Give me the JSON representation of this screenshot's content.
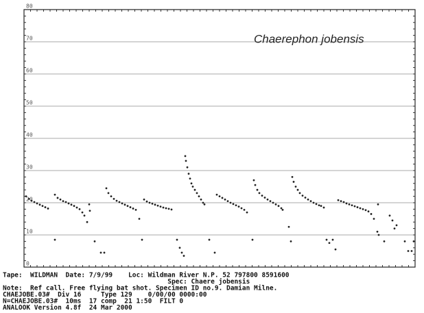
{
  "chart_data": {
    "type": "scatter",
    "annotation": "Chaerephon jobensis",
    "ylim": [
      0,
      80
    ],
    "yticks": [
      0,
      10,
      20,
      30,
      40,
      50,
      60,
      70,
      80
    ],
    "xlim": [
      0,
      570
    ],
    "grid": true,
    "color": "#222222",
    "x": [
      3,
      7,
      11,
      15,
      19,
      23,
      27,
      31,
      35,
      45,
      49,
      53,
      57,
      61,
      65,
      69,
      73,
      77,
      81,
      85,
      88,
      92,
      45,
      95,
      96,
      103,
      112,
      117,
      120,
      123,
      127,
      131,
      135,
      139,
      143,
      147,
      151,
      155,
      159,
      163,
      168,
      172,
      175,
      179,
      183,
      187,
      191,
      195,
      199,
      203,
      207,
      211,
      215,
      223,
      227,
      230,
      233,
      235,
      236,
      238,
      240,
      242,
      244,
      246,
      249,
      252,
      255,
      258,
      261,
      263,
      270,
      278,
      281,
      285,
      289,
      293,
      297,
      301,
      305,
      309,
      313,
      317,
      321,
      325,
      333,
      335,
      337,
      340,
      343,
      347,
      351,
      355,
      359,
      363,
      367,
      371,
      375,
      377,
      386,
      389,
      391,
      393,
      396,
      399,
      402,
      406,
      410,
      414,
      418,
      422,
      426,
      430,
      433,
      437,
      441,
      445,
      450,
      454,
      458,
      462,
      466,
      470,
      474,
      478,
      482,
      486,
      490,
      494,
      498,
      502,
      506,
      510,
      516,
      515,
      517,
      525,
      533,
      537,
      540,
      543,
      555,
      560,
      565,
      568
    ],
    "values": [
      22,
      21.2,
      20.6,
      20.2,
      19.8,
      19.4,
      19,
      18.6,
      18.2,
      22.5,
      21.5,
      21,
      20.5,
      20.2,
      19.8,
      19.4,
      19,
      18.5,
      18,
      17,
      16,
      14,
      8.5,
      19.5,
      17.5,
      8,
      4.5,
      4.5,
      24.5,
      23,
      22,
      21.2,
      20.6,
      20.2,
      19.8,
      19.4,
      19,
      18.6,
      18.2,
      17.8,
      15,
      8.5,
      21,
      20.4,
      20,
      19.7,
      19.4,
      19.1,
      18.8,
      18.5,
      18.3,
      18.1,
      17.9,
      8.5,
      6,
      4.5,
      3.5,
      34.5,
      33,
      31,
      29,
      27.5,
      26,
      25,
      24,
      23,
      22,
      21,
      20,
      19.5,
      8.5,
      4.5,
      22.5,
      22,
      21.5,
      21,
      20.5,
      20,
      19.6,
      19.2,
      18.8,
      18.3,
      17.8,
      17,
      8.5,
      27,
      25.5,
      24,
      23,
      22.2,
      21.6,
      21,
      20.5,
      20,
      19.5,
      19,
      18.3,
      17.8,
      12.5,
      8,
      28,
      26.5,
      25,
      24,
      23,
      22.2,
      21.6,
      21,
      20.5,
      20,
      19.6,
      19.2,
      19,
      18.5,
      8.5,
      7.5,
      8.5,
      5.5,
      20.8,
      20.5,
      20.2,
      19.8,
      19.5,
      19.2,
      18.9,
      18.6,
      18.3,
      18,
      17.7,
      17.3,
      16.5,
      15,
      19.5,
      11,
      10,
      8,
      16,
      14.5,
      12,
      13,
      8,
      5,
      5,
      8
    ],
    "status_lines": [
      "Tape:  WILDMAN  Date: 7/9/99    Loc: Wildman River N.P. 52 797800 8591600",
      "                                          Spec: Chaere jobensis",
      "Note:  Ref call. Free flying bat shot. Specimen ID no.9. Damian Milne.",
      "CHAEJOBE.03#  Div 16     Type 129    0/00/00 0000:00",
      "N=CHAEJOBE.03#  10ms  17 comp  21 1:50  FILT 0",
      "ANALOOK Version 4.8f  24 Mar 2000"
    ]
  }
}
